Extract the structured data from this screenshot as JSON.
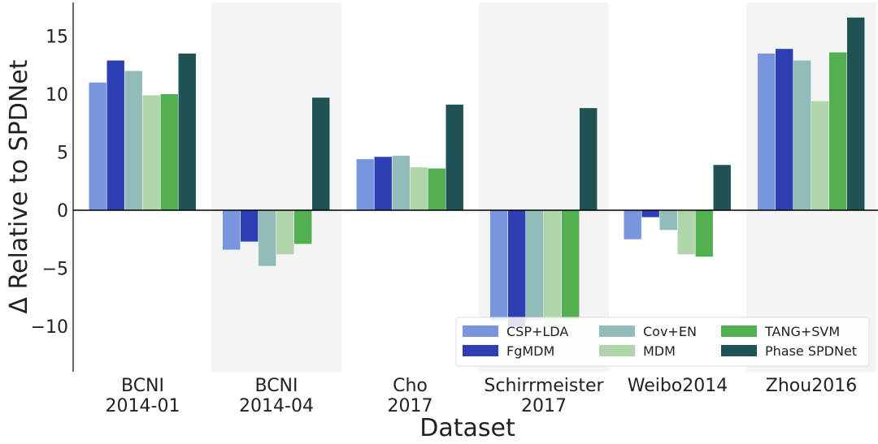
{
  "chart_data": {
    "type": "bar",
    "xlabel": "Dataset",
    "ylabel": "Δ Relative to SPDNet",
    "ylim": [
      -14,
      18
    ],
    "yticks": [
      -10,
      -5,
      0,
      5,
      10,
      15
    ],
    "categories": [
      {
        "line1": "BCNI",
        "line2": "2014-01"
      },
      {
        "line1": "BCNI",
        "line2": "2014-04"
      },
      {
        "line1": "Cho",
        "line2": "2017"
      },
      {
        "line1": "Schirrmeister",
        "line2": "2017"
      },
      {
        "line1": "Weibo2014",
        "line2": ""
      },
      {
        "line1": "Zhou2016",
        "line2": ""
      }
    ],
    "shaded_categories": [
      1,
      3,
      5
    ],
    "series": [
      {
        "name": "CSP+LDA",
        "color": "#7895dd",
        "values": [
          11.0,
          -3.4,
          4.4,
          -9.5,
          -2.5,
          13.5
        ]
      },
      {
        "name": "FgMDM",
        "color": "#2e3fb3",
        "values": [
          12.9,
          -2.7,
          4.6,
          -10.0,
          -0.6,
          13.9
        ]
      },
      {
        "name": "Cov+EN",
        "color": "#92bcb9",
        "values": [
          12.0,
          -4.8,
          4.7,
          -9.5,
          -1.7,
          12.9
        ]
      },
      {
        "name": "MDM",
        "color": "#b0d5ab",
        "values": [
          9.9,
          -3.8,
          3.7,
          -10.3,
          -3.8,
          9.4
        ]
      },
      {
        "name": "TANG+SVM",
        "color": "#52af52",
        "values": [
          10.0,
          -2.9,
          3.6,
          -9.4,
          -4.0,
          13.6
        ]
      },
      {
        "name": "Phase SPDNet",
        "color": "#1e5253",
        "values": [
          13.5,
          9.7,
          9.1,
          8.8,
          3.9,
          16.6
        ]
      }
    ],
    "legend": {
      "position": "lower-right",
      "columns": 3
    }
  }
}
